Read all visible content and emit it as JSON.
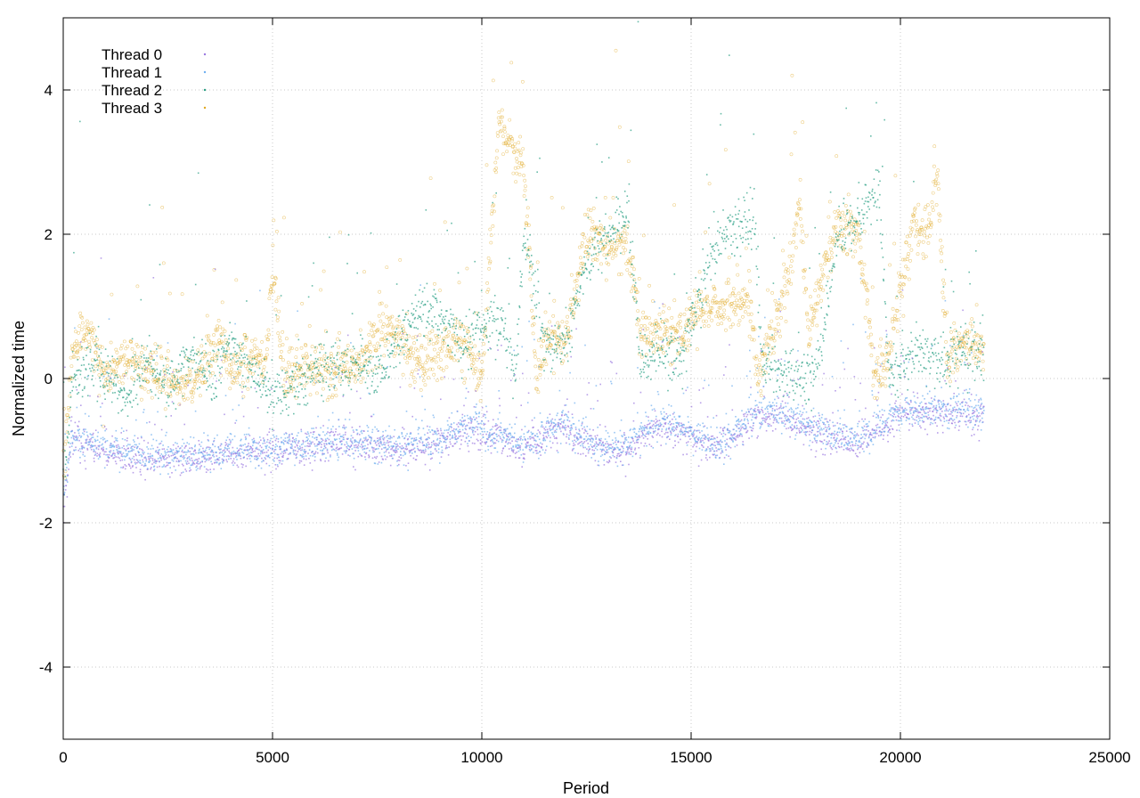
{
  "chart_data": {
    "type": "scatter",
    "title": "",
    "xlabel": "Period",
    "ylabel": "Normalized time",
    "xlim": [
      0,
      25000
    ],
    "ylim": [
      -5,
      5
    ],
    "x_ticks": [
      "0",
      "5000",
      "10000",
      "15000",
      "20000",
      "25000"
    ],
    "y_ticks": [
      "-4",
      "-2",
      "0",
      "2",
      "4"
    ],
    "grid": true,
    "legend_position": "top-left",
    "n_periods": 22000,
    "series": [
      {
        "name": "Thread 0",
        "color": "#9a78e0",
        "marker": "dot",
        "mean_trend": [
          [
            0,
            -1.8
          ],
          [
            200,
            -0.8
          ],
          [
            1000,
            -1.0
          ],
          [
            2000,
            -1.1
          ],
          [
            3000,
            -1.1
          ],
          [
            4000,
            -1.05
          ],
          [
            5000,
            -1.0
          ],
          [
            6000,
            -0.95
          ],
          [
            7000,
            -0.9
          ],
          [
            8000,
            -1.0
          ],
          [
            9000,
            -0.9
          ],
          [
            9600,
            -0.7
          ],
          [
            10500,
            -0.85
          ],
          [
            11000,
            -0.95
          ],
          [
            11600,
            -0.75
          ],
          [
            12000,
            -0.7
          ],
          [
            12500,
            -0.9
          ],
          [
            13000,
            -1.0
          ],
          [
            13500,
            -0.95
          ],
          [
            14000,
            -0.7
          ],
          [
            14500,
            -0.65
          ],
          [
            15000,
            -0.8
          ],
          [
            15600,
            -0.95
          ],
          [
            16000,
            -0.8
          ],
          [
            16500,
            -0.55
          ],
          [
            17000,
            -0.5
          ],
          [
            17500,
            -0.6
          ],
          [
            18000,
            -0.75
          ],
          [
            18500,
            -0.8
          ],
          [
            19000,
            -0.9
          ],
          [
            19500,
            -0.7
          ],
          [
            20000,
            -0.5
          ],
          [
            21000,
            -0.5
          ],
          [
            22000,
            -0.5
          ]
        ]
      },
      {
        "name": "Thread 1",
        "color": "#6eaef0",
        "marker": "dot",
        "mean_trend": [
          [
            0,
            -1.7
          ],
          [
            200,
            -0.85
          ],
          [
            1000,
            -0.95
          ],
          [
            2000,
            -1.05
          ],
          [
            3000,
            -1.05
          ],
          [
            4000,
            -1.0
          ],
          [
            5000,
            -0.95
          ],
          [
            6000,
            -0.9
          ],
          [
            7000,
            -0.85
          ],
          [
            8000,
            -0.95
          ],
          [
            9000,
            -0.85
          ],
          [
            9600,
            -0.6
          ],
          [
            10500,
            -0.8
          ],
          [
            11000,
            -0.9
          ],
          [
            11600,
            -0.7
          ],
          [
            12000,
            -0.65
          ],
          [
            12500,
            -0.85
          ],
          [
            13000,
            -0.95
          ],
          [
            13500,
            -0.9
          ],
          [
            14000,
            -0.65
          ],
          [
            14500,
            -0.6
          ],
          [
            15000,
            -0.75
          ],
          [
            15600,
            -0.9
          ],
          [
            16000,
            -0.75
          ],
          [
            16500,
            -0.5
          ],
          [
            17000,
            -0.45
          ],
          [
            17500,
            -0.55
          ],
          [
            18000,
            -0.7
          ],
          [
            18500,
            -0.75
          ],
          [
            19000,
            -0.85
          ],
          [
            19500,
            -0.65
          ],
          [
            20000,
            -0.45
          ],
          [
            21000,
            -0.45
          ],
          [
            22000,
            -0.45
          ]
        ]
      },
      {
        "name": "Thread 2",
        "color": "#2aa084",
        "marker": "dot",
        "mean_trend": [
          [
            0,
            -1.6
          ],
          [
            200,
            0.0
          ],
          [
            800,
            0.2
          ],
          [
            1500,
            -0.3
          ],
          [
            2000,
            0.2
          ],
          [
            2500,
            -0.1
          ],
          [
            3000,
            0.35
          ],
          [
            3600,
            0.0
          ],
          [
            4000,
            0.5
          ],
          [
            4500,
            0.1
          ],
          [
            5000,
            -0.3
          ],
          [
            6000,
            0.1
          ],
          [
            7000,
            0.2
          ],
          [
            7500,
            0.0
          ],
          [
            8000,
            0.5
          ],
          [
            8500,
            0.9
          ],
          [
            9000,
            0.9
          ],
          [
            9600,
            0.5
          ],
          [
            10000,
            0.7
          ],
          [
            10500,
            0.8
          ],
          [
            10800,
            0.0
          ],
          [
            11000,
            2.0
          ],
          [
            11500,
            0.5
          ],
          [
            12000,
            0.5
          ],
          [
            12500,
            1.6
          ],
          [
            13000,
            1.9
          ],
          [
            13500,
            2.3
          ],
          [
            13800,
            0.1
          ],
          [
            14200,
            0.4
          ],
          [
            14800,
            0.3
          ],
          [
            15400,
            1.6
          ],
          [
            16000,
            2.1
          ],
          [
            16500,
            2.2
          ],
          [
            16700,
            0.2
          ],
          [
            17500,
            0.0
          ],
          [
            18000,
            0.1
          ],
          [
            18500,
            2.0
          ],
          [
            19000,
            2.2
          ],
          [
            19500,
            2.6
          ],
          [
            19700,
            0.1
          ],
          [
            20000,
            0.2
          ],
          [
            20500,
            0.4
          ],
          [
            21000,
            0.2
          ],
          [
            21500,
            0.4
          ],
          [
            22000,
            0.3
          ]
        ]
      },
      {
        "name": "Thread 3",
        "color": "#e0a820",
        "marker": "circle",
        "mean_trend": [
          [
            0,
            -1.5
          ],
          [
            200,
            0.3
          ],
          [
            500,
            0.8
          ],
          [
            1000,
            0.0
          ],
          [
            1500,
            0.3
          ],
          [
            2000,
            0.1
          ],
          [
            2500,
            -0.05
          ],
          [
            3000,
            -0.1
          ],
          [
            3500,
            0.3
          ],
          [
            3800,
            0.6
          ],
          [
            4000,
            0.0
          ],
          [
            4600,
            0.4
          ],
          [
            4800,
            0.1
          ],
          [
            5000,
            1.5
          ],
          [
            5300,
            0.0
          ],
          [
            5800,
            0.2
          ],
          [
            6500,
            0.1
          ],
          [
            7000,
            0.15
          ],
          [
            7500,
            0.6
          ],
          [
            8000,
            0.6
          ],
          [
            8500,
            0.2
          ],
          [
            9000,
            0.4
          ],
          [
            9500,
            0.6
          ],
          [
            10000,
            0.0
          ],
          [
            10400,
            3.6
          ],
          [
            10700,
            3.2
          ],
          [
            11000,
            2.9
          ],
          [
            11300,
            0.0
          ],
          [
            11600,
            0.6
          ],
          [
            12000,
            0.5
          ],
          [
            12500,
            2.0
          ],
          [
            13000,
            1.8
          ],
          [
            13500,
            1.8
          ],
          [
            13800,
            0.6
          ],
          [
            14200,
            0.6
          ],
          [
            14700,
            0.6
          ],
          [
            15200,
            1.0
          ],
          [
            16000,
            1.0
          ],
          [
            16400,
            1.0
          ],
          [
            16600,
            0.0
          ],
          [
            17200,
            1.1
          ],
          [
            17600,
            2.4
          ],
          [
            17800,
            0.5
          ],
          [
            18200,
            1.7
          ],
          [
            18500,
            2.1
          ],
          [
            19000,
            2.0
          ],
          [
            19400,
            0.0
          ],
          [
            19700,
            0.2
          ],
          [
            20000,
            1.2
          ],
          [
            20300,
            2.2
          ],
          [
            20600,
            2.0
          ],
          [
            20900,
            2.7
          ],
          [
            21100,
            0.2
          ],
          [
            21500,
            0.5
          ],
          [
            22000,
            0.4
          ]
        ]
      }
    ]
  }
}
